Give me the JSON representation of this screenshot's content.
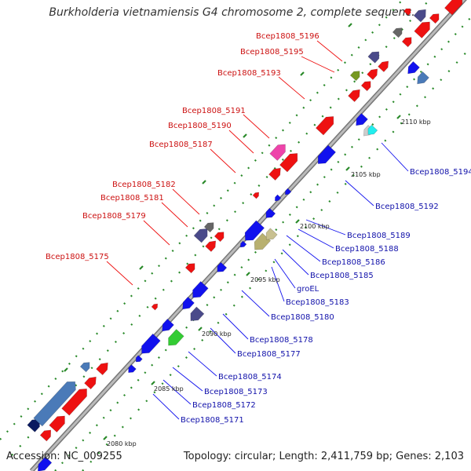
{
  "title": "Burkholderia vietnamiensis G4 chromosome 2, complete sequenc...",
  "footer": {
    "accession": "Accession: NC_009255",
    "summary": "Topology: circular; Length: 2,411,759 bp; Genes: 2,103"
  },
  "colors": {
    "forward": "#ee1111",
    "reverse": "#1111ee",
    "backbone": "#999999",
    "label_forward": "#cc1111",
    "label_reverse": "#1111aa",
    "grid_dots": "#228822"
  },
  "ticks": [
    "2080 kbp",
    "2085 kbp",
    "2090 kbp",
    "2095 kbp",
    "2100 kbp",
    "2105 kbp",
    "2110 kbp"
  ],
  "forward_labels": [
    "Bcep1808_5196",
    "Bcep1808_5195",
    "Bcep1808_5193",
    "Bcep1808_5191",
    "Bcep1808_5190",
    "Bcep1808_5187",
    "Bcep1808_5182",
    "Bcep1808_5181",
    "Bcep1808_5179",
    "Bcep1808_5175"
  ],
  "reverse_labels": [
    "Bcep1808_5194",
    "Bcep1808_5192",
    "Bcep1808_5189",
    "Bcep1808_5188",
    "Bcep1808_5186",
    "Bcep1808_5185",
    "groEL",
    "Bcep1808_5183",
    "Bcep1808_5180",
    "Bcep1808_5178",
    "Bcep1808_5177",
    "Bcep1808_5174",
    "Bcep1808_5173",
    "Bcep1808_5172",
    "Bcep1808_5171"
  ]
}
